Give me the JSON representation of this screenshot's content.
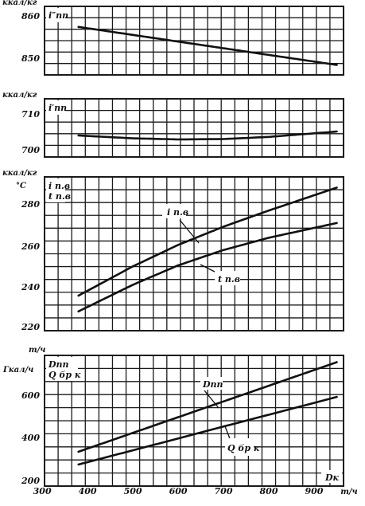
{
  "chart_data": [
    {
      "type": "line",
      "y_unit": "ккал/кг",
      "y_symbol": "i″пп",
      "ylim": [
        846,
        861
      ],
      "y_ticks": [
        850,
        860
      ],
      "grid": true,
      "series": [
        {
          "label": "",
          "x": [
            380,
            950
          ],
          "values": [
            857.4,
            848.4
          ]
        }
      ]
    },
    {
      "type": "line",
      "y_unit": "ккал/кг",
      "y_symbol": "i′пп",
      "ylim": [
        700,
        712
      ],
      "y_ticks": [
        700,
        710
      ],
      "grid": true,
      "series": [
        {
          "label": "",
          "x": [
            380,
            500,
            600,
            700,
            800,
            950
          ],
          "values": [
            704.0,
            703.2,
            702.9,
            703.0,
            703.6,
            705.1
          ]
        }
      ]
    },
    {
      "type": "line",
      "y_unit": "ккал/кг",
      "y_unit2": "°C",
      "y_symbol": "i п.в",
      "y_symbol2": "t п.в",
      "ylim": [
        220,
        284
      ],
      "y_ticks": [
        220,
        240,
        260,
        280
      ],
      "grid": true,
      "series": [
        {
          "label": "i п.в",
          "x": [
            380,
            500,
            600,
            700,
            800,
            950
          ],
          "values": [
            235.2,
            249.5,
            260.0,
            268.9,
            276.8,
            288.0
          ]
        },
        {
          "label": "t п.в",
          "x": [
            380,
            500,
            600,
            700,
            800,
            950
          ],
          "values": [
            227.5,
            240.5,
            250.0,
            257.5,
            263.5,
            270.7
          ]
        }
      ]
    },
    {
      "type": "line",
      "y_unit": "т/ч",
      "y_unit2": "Гкал/ч",
      "y_symbol": "Dпп",
      "y_symbol2": "Q бр к",
      "ylim": [
        200,
        750
      ],
      "y_ticks": [
        200,
        400,
        600
      ],
      "x_ticks": [
        300,
        400,
        500,
        600,
        700,
        800,
        900
      ],
      "x_unit": "т/ч",
      "x_symbol": "Dк",
      "grid": true,
      "series": [
        {
          "label": "Dпп",
          "x": [
            380,
            950
          ],
          "values": [
            335,
            755
          ]
        },
        {
          "label": "Q бр к",
          "x": [
            380,
            950
          ],
          "values": [
            275,
            592
          ]
        }
      ]
    }
  ]
}
